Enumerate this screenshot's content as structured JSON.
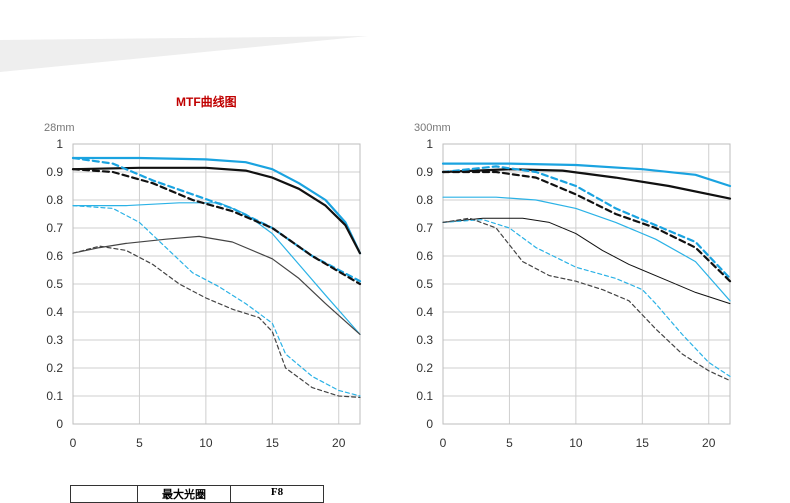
{
  "title": "MTF曲线图",
  "colors": {
    "title": "#c00000",
    "blue": "#1aa3e0",
    "lightblue": "#2bb2e6",
    "black": "#111111",
    "gray": "#444444"
  },
  "table": {
    "rows": [
      [
        "",
        "最大光圈",
        "F8"
      ]
    ]
  },
  "chart_data": [
    {
      "type": "line",
      "ylabel": "28mm",
      "xlim": [
        0,
        21.6
      ],
      "ylim": [
        0,
        1
      ],
      "xticks": [
        0,
        5,
        10,
        15,
        20
      ],
      "yticks": [
        0,
        0.1,
        0.2,
        0.3,
        0.4,
        0.5,
        0.6,
        0.7,
        0.8,
        0.9,
        1
      ],
      "grid": true,
      "series": [
        {
          "color": "#1aa3e0",
          "width": 2.2,
          "dash": "",
          "points": [
            [
              0,
              0.95
            ],
            [
              5,
              0.95
            ],
            [
              10,
              0.945
            ],
            [
              13,
              0.935
            ],
            [
              15,
              0.91
            ],
            [
              17,
              0.86
            ],
            [
              19,
              0.8
            ],
            [
              20.5,
              0.72
            ],
            [
              21.6,
              0.61
            ]
          ]
        },
        {
          "color": "#111111",
          "width": 2.2,
          "dash": "",
          "points": [
            [
              0,
              0.91
            ],
            [
              5,
              0.915
            ],
            [
              10,
              0.915
            ],
            [
              13,
              0.905
            ],
            [
              15,
              0.88
            ],
            [
              17,
              0.84
            ],
            [
              19,
              0.78
            ],
            [
              20.5,
              0.71
            ],
            [
              21.6,
              0.61
            ]
          ]
        },
        {
          "color": "#1aa3e0",
          "width": 2.2,
          "dash": "6,4",
          "points": [
            [
              0,
              0.95
            ],
            [
              3,
              0.93
            ],
            [
              6,
              0.87
            ],
            [
              9,
              0.82
            ],
            [
              12,
              0.77
            ],
            [
              15,
              0.7
            ],
            [
              18,
              0.6
            ],
            [
              21.6,
              0.51
            ]
          ]
        },
        {
          "color": "#111111",
          "width": 2.2,
          "dash": "6,4",
          "points": [
            [
              0,
              0.91
            ],
            [
              3,
              0.9
            ],
            [
              6,
              0.86
            ],
            [
              9,
              0.8
            ],
            [
              12,
              0.76
            ],
            [
              15,
              0.7
            ],
            [
              18,
              0.6
            ],
            [
              21.6,
              0.5
            ]
          ]
        },
        {
          "color": "#2bb2e6",
          "width": 1.2,
          "dash": "",
          "points": [
            [
              0,
              0.78
            ],
            [
              4,
              0.78
            ],
            [
              8,
              0.79
            ],
            [
              11,
              0.79
            ],
            [
              13,
              0.75
            ],
            [
              15,
              0.68
            ],
            [
              17,
              0.57
            ],
            [
              19,
              0.46
            ],
            [
              21.6,
              0.32
            ]
          ]
        },
        {
          "color": "#444444",
          "width": 1.2,
          "dash": "",
          "points": [
            [
              0,
              0.61
            ],
            [
              2,
              0.63
            ],
            [
              4,
              0.645
            ],
            [
              7,
              0.66
            ],
            [
              9.5,
              0.67
            ],
            [
              12,
              0.65
            ],
            [
              15,
              0.59
            ],
            [
              17,
              0.52
            ],
            [
              19,
              0.43
            ],
            [
              21.6,
              0.32
            ]
          ]
        },
        {
          "color": "#2bb2e6",
          "width": 1.2,
          "dash": "4,3",
          "points": [
            [
              0,
              0.78
            ],
            [
              3,
              0.77
            ],
            [
              5,
              0.72
            ],
            [
              7,
              0.63
            ],
            [
              9,
              0.54
            ],
            [
              11,
              0.49
            ],
            [
              13,
              0.43
            ],
            [
              15,
              0.36
            ],
            [
              16,
              0.25
            ],
            [
              18,
              0.17
            ],
            [
              20,
              0.12
            ],
            [
              21.6,
              0.1
            ]
          ]
        },
        {
          "color": "#444444",
          "width": 1.2,
          "dash": "4,3",
          "points": [
            [
              0,
              0.61
            ],
            [
              2,
              0.635
            ],
            [
              4,
              0.62
            ],
            [
              6,
              0.57
            ],
            [
              8,
              0.5
            ],
            [
              10,
              0.45
            ],
            [
              12,
              0.41
            ],
            [
              14,
              0.38
            ],
            [
              15,
              0.33
            ],
            [
              16,
              0.2
            ],
            [
              18,
              0.13
            ],
            [
              20,
              0.1
            ],
            [
              21.6,
              0.095
            ]
          ]
        }
      ]
    },
    {
      "type": "line",
      "ylabel": "300mm",
      "xlim": [
        0,
        21.6
      ],
      "ylim": [
        0,
        1
      ],
      "xticks": [
        0,
        5,
        10,
        15,
        20
      ],
      "yticks": [
        0,
        0.1,
        0.2,
        0.3,
        0.4,
        0.5,
        0.6,
        0.7,
        0.8,
        0.9,
        1
      ],
      "grid": true,
      "series": [
        {
          "color": "#1aa3e0",
          "width": 2.2,
          "dash": "",
          "points": [
            [
              0,
              0.93
            ],
            [
              5,
              0.93
            ],
            [
              10,
              0.925
            ],
            [
              15,
              0.91
            ],
            [
              19,
              0.89
            ],
            [
              21.6,
              0.85
            ]
          ]
        },
        {
          "color": "#111111",
          "width": 2.2,
          "dash": "",
          "points": [
            [
              0,
              0.9
            ],
            [
              5,
              0.91
            ],
            [
              9,
              0.905
            ],
            [
              13,
              0.88
            ],
            [
              17,
              0.85
            ],
            [
              21.6,
              0.805
            ]
          ]
        },
        {
          "color": "#1aa3e0",
          "width": 2.2,
          "dash": "6,4",
          "points": [
            [
              0,
              0.9
            ],
            [
              4,
              0.92
            ],
            [
              7,
              0.9
            ],
            [
              10,
              0.85
            ],
            [
              13,
              0.77
            ],
            [
              16,
              0.71
            ],
            [
              19,
              0.65
            ],
            [
              21.6,
              0.52
            ]
          ]
        },
        {
          "color": "#111111",
          "width": 2.2,
          "dash": "6,4",
          "points": [
            [
              0,
              0.9
            ],
            [
              4,
              0.9
            ],
            [
              7,
              0.88
            ],
            [
              10,
              0.82
            ],
            [
              13,
              0.75
            ],
            [
              16,
              0.7
            ],
            [
              19,
              0.63
            ],
            [
              21.6,
              0.51
            ]
          ]
        },
        {
          "color": "#2bb2e6",
          "width": 1.2,
          "dash": "",
          "points": [
            [
              0,
              0.81
            ],
            [
              4,
              0.81
            ],
            [
              7,
              0.8
            ],
            [
              10,
              0.77
            ],
            [
              13,
              0.72
            ],
            [
              16,
              0.66
            ],
            [
              19,
              0.58
            ],
            [
              21.6,
              0.44
            ]
          ]
        },
        {
          "color": "#111111",
          "width": 1.0,
          "dash": "",
          "points": [
            [
              0,
              0.72
            ],
            [
              3,
              0.735
            ],
            [
              6,
              0.735
            ],
            [
              8,
              0.72
            ],
            [
              10,
              0.68
            ],
            [
              12,
              0.62
            ],
            [
              14,
              0.57
            ],
            [
              17,
              0.51
            ],
            [
              19,
              0.47
            ],
            [
              21.6,
              0.43
            ]
          ]
        },
        {
          "color": "#2bb2e6",
          "width": 1.2,
          "dash": "4,3",
          "points": [
            [
              0,
              0.72
            ],
            [
              3,
              0.73
            ],
            [
              5,
              0.7
            ],
            [
              7,
              0.63
            ],
            [
              10,
              0.56
            ],
            [
              13,
              0.52
            ],
            [
              15,
              0.48
            ],
            [
              16,
              0.43
            ],
            [
              18,
              0.32
            ],
            [
              20,
              0.22
            ],
            [
              21.6,
              0.17
            ]
          ]
        },
        {
          "color": "#444444",
          "width": 1.2,
          "dash": "4,3",
          "points": [
            [
              0,
              0.72
            ],
            [
              2,
              0.735
            ],
            [
              4,
              0.7
            ],
            [
              6,
              0.58
            ],
            [
              8,
              0.53
            ],
            [
              10,
              0.51
            ],
            [
              12,
              0.48
            ],
            [
              14,
              0.44
            ],
            [
              16,
              0.34
            ],
            [
              18,
              0.25
            ],
            [
              20,
              0.19
            ],
            [
              21.6,
              0.155
            ]
          ]
        }
      ]
    }
  ]
}
